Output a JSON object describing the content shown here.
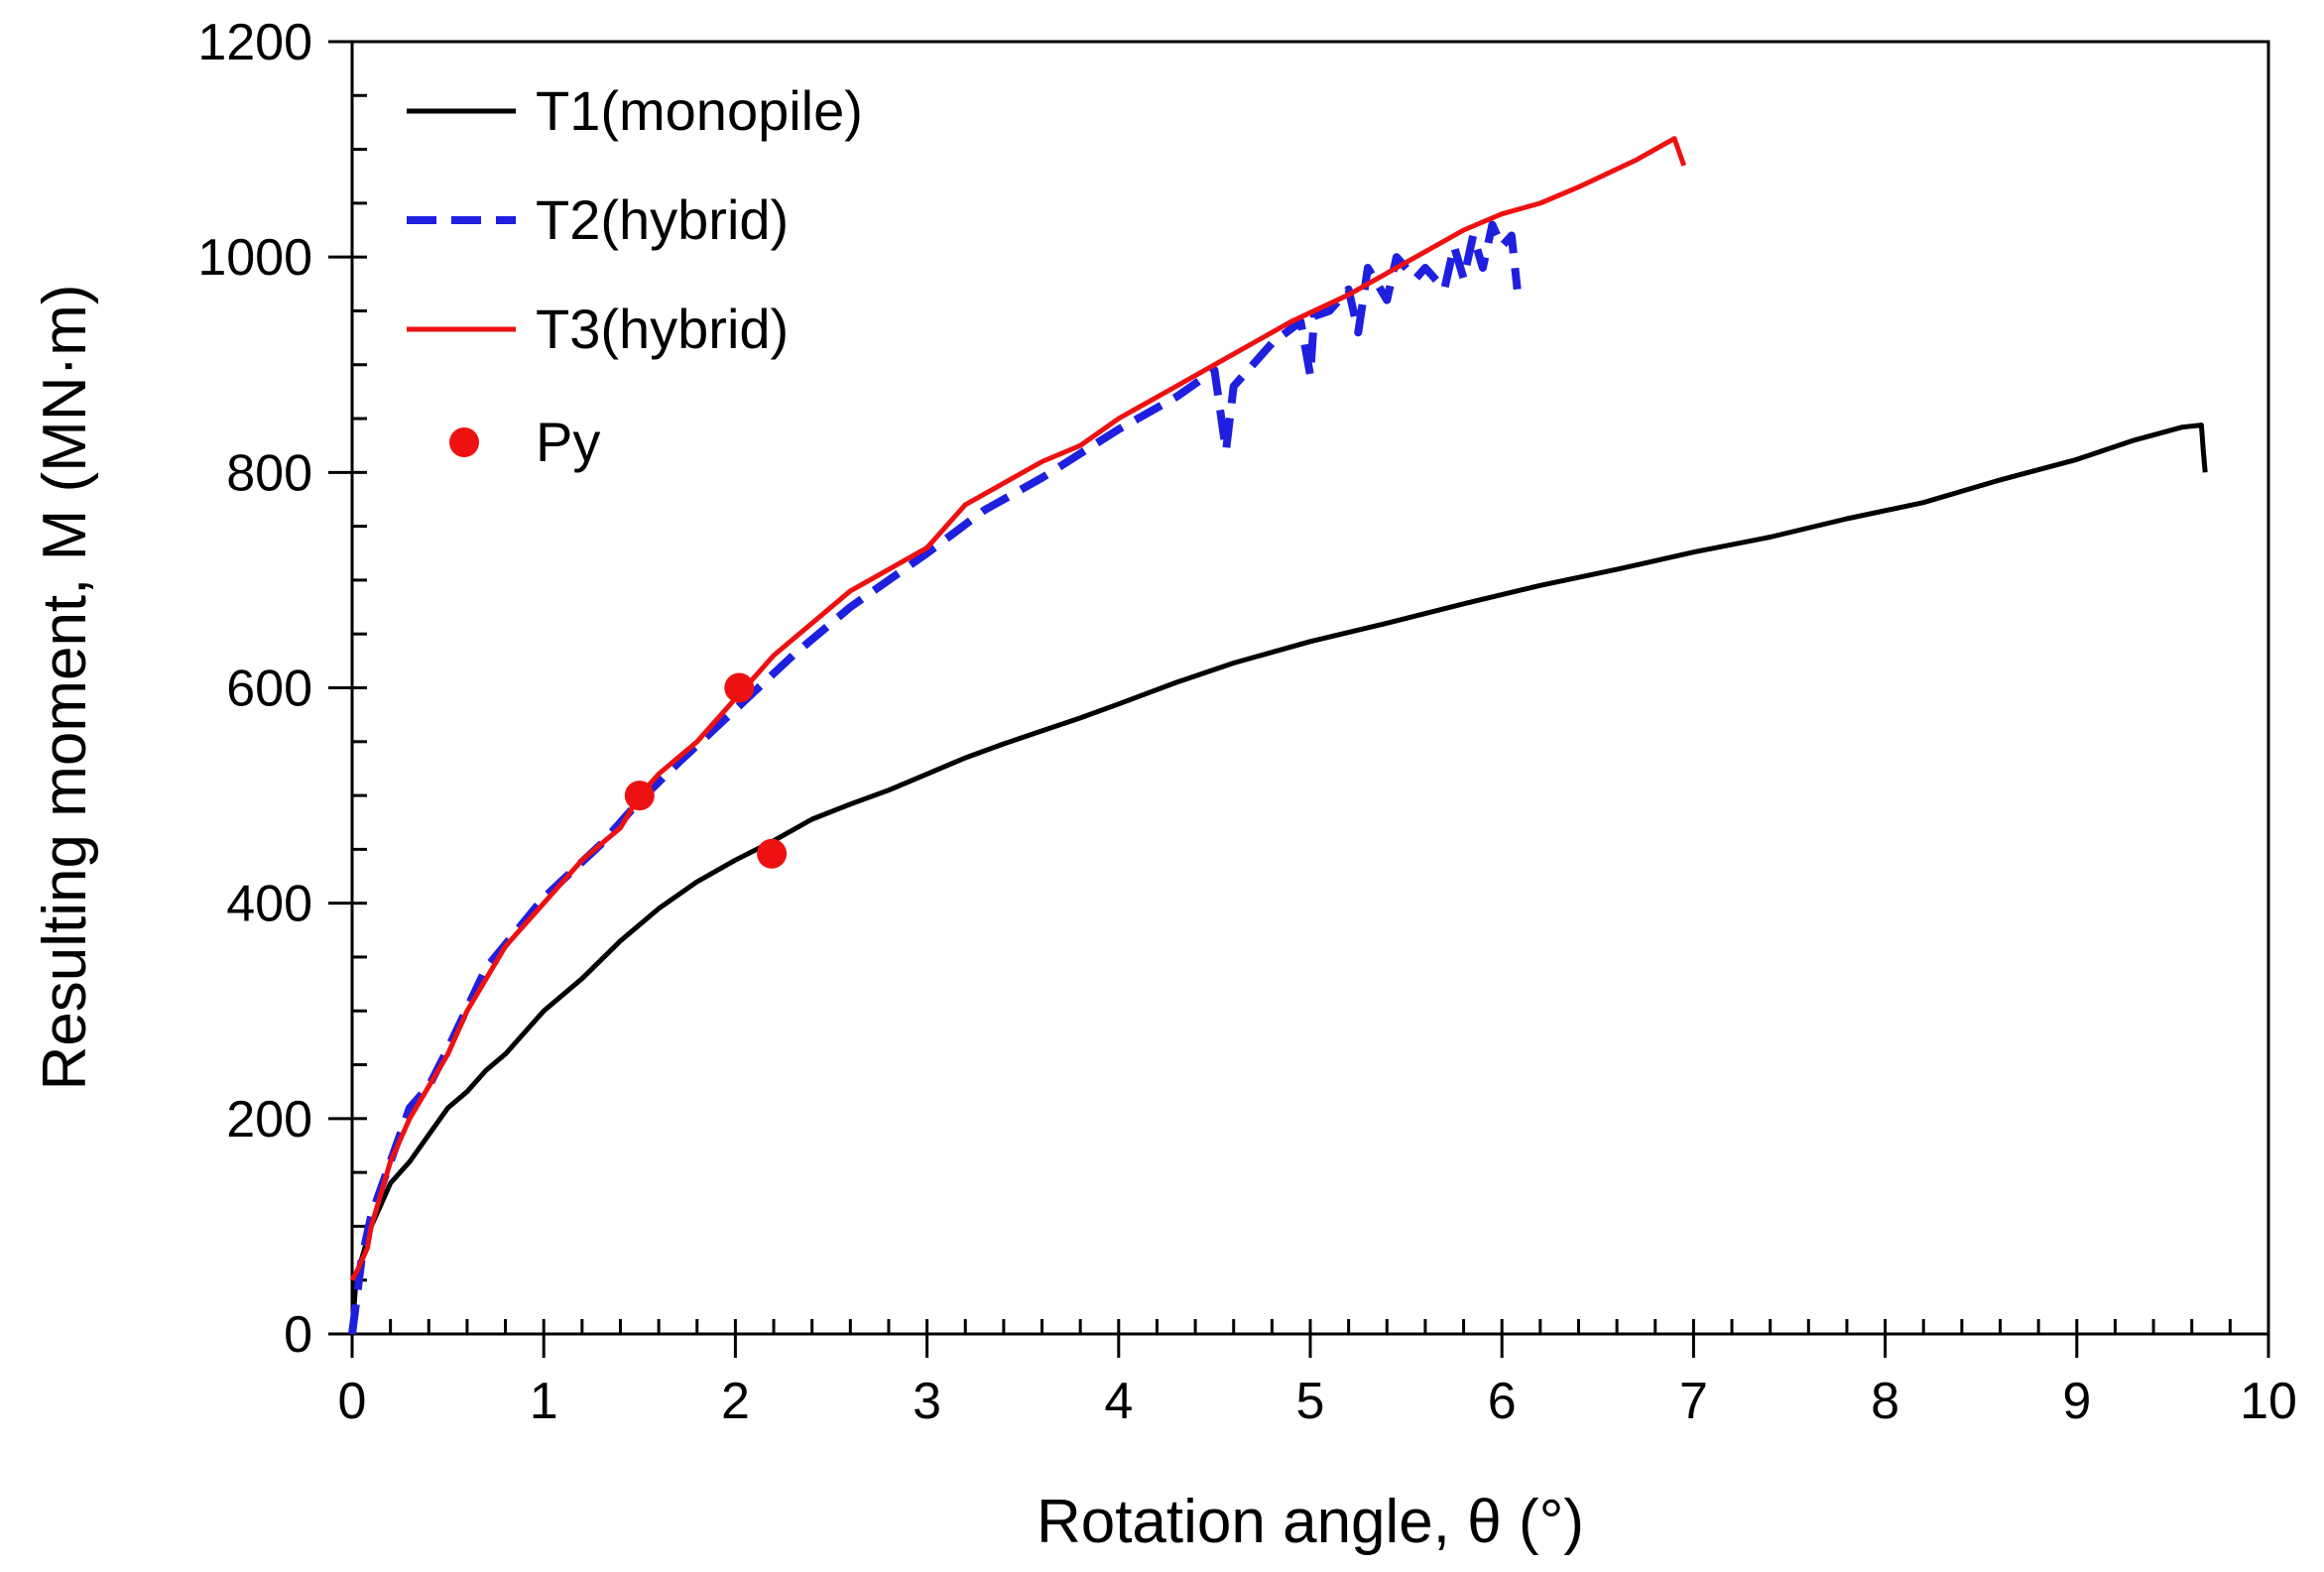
{
  "chart_data": {
    "type": "line",
    "title": "",
    "xlabel": "Rotation angle, θ (°)",
    "ylabel": "Resulting moment, M (MN·m)",
    "xlim": [
      0,
      10
    ],
    "ylim": [
      0,
      1200
    ],
    "xticks": [
      0,
      1,
      2,
      3,
      4,
      5,
      6,
      7,
      8,
      9,
      10
    ],
    "yticks": [
      0,
      200,
      400,
      600,
      800,
      1000,
      1200
    ],
    "grid": false,
    "legend_position": "top-left",
    "series": [
      {
        "name": "T1(monopile)",
        "color": "#000000",
        "style": "solid",
        "x": [
          0,
          0.02,
          0.05,
          0.1,
          0.15,
          0.2,
          0.3,
          0.4,
          0.5,
          0.6,
          0.7,
          0.8,
          0.9,
          1.0,
          1.2,
          1.4,
          1.6,
          1.8,
          2.0,
          2.2,
          2.4,
          2.6,
          2.8,
          3.0,
          3.2,
          3.4,
          3.6,
          3.8,
          4.0,
          4.3,
          4.6,
          5.0,
          5.4,
          5.8,
          6.2,
          6.6,
          7.0,
          7.4,
          7.8,
          8.2,
          8.6,
          9.0,
          9.3,
          9.55,
          9.65,
          9.66,
          9.67
        ],
        "values": [
          0,
          50,
          70,
          100,
          120,
          140,
          160,
          185,
          210,
          225,
          245,
          260,
          280,
          300,
          330,
          365,
          395,
          420,
          440,
          458,
          478,
          492,
          505,
          520,
          535,
          548,
          560,
          572,
          585,
          605,
          623,
          643,
          660,
          678,
          695,
          710,
          726,
          740,
          757,
          772,
          793,
          812,
          830,
          842,
          844,
          820,
          800
        ]
      },
      {
        "name": "T2(hybrid)",
        "color": "#1f1fe0",
        "style": "dashed",
        "x": [
          0,
          0.05,
          0.1,
          0.2,
          0.3,
          0.4,
          0.5,
          0.7,
          1.0,
          1.3,
          1.5,
          1.7,
          2.0,
          2.3,
          2.6,
          3.0,
          3.3,
          3.6,
          4.0,
          4.3,
          4.5,
          4.56,
          4.6,
          4.8,
          4.95,
          5.0,
          5.02,
          5.1,
          5.2,
          5.25,
          5.3,
          5.4,
          5.45,
          5.55,
          5.6,
          5.7,
          5.75,
          5.8,
          5.85,
          5.9,
          5.95,
          6.0,
          6.05,
          6.08
        ],
        "values": [
          0,
          70,
          110,
          160,
          210,
          230,
          265,
          340,
          405,
          455,
          495,
          530,
          580,
          630,
          675,
          725,
          765,
          795,
          840,
          870,
          895,
          820,
          880,
          920,
          940,
          890,
          945,
          950,
          970,
          930,
          990,
          960,
          1000,
          980,
          990,
          970,
          1010,
          980,
          1020,
          990,
          1030,
          1010,
          1020,
          970
        ]
      },
      {
        "name": "T3(hybrid)",
        "color": "#ee1111",
        "style": "solid",
        "x": [
          0,
          0.03,
          0.08,
          0.1,
          0.15,
          0.2,
          0.3,
          0.4,
          0.5,
          0.6,
          0.7,
          0.8,
          1.0,
          1.2,
          1.4,
          1.5,
          1.6,
          1.8,
          2.0,
          2.2,
          2.4,
          2.6,
          2.8,
          3.0,
          3.2,
          3.4,
          3.6,
          3.8,
          4.0,
          4.3,
          4.6,
          4.9,
          5.2,
          5.5,
          5.8,
          6.0,
          6.2,
          6.4,
          6.7,
          6.9,
          6.95
        ],
        "values": [
          50,
          60,
          80,
          100,
          130,
          160,
          200,
          230,
          260,
          300,
          330,
          360,
          400,
          440,
          470,
          500,
          520,
          550,
          590,
          630,
          660,
          690,
          710,
          730,
          770,
          790,
          810,
          825,
          850,
          880,
          910,
          940,
          965,
          995,
          1025,
          1040,
          1050,
          1065,
          1090,
          1110,
          1085
        ]
      }
    ],
    "markers": {
      "name": "Py",
      "color": "#ee1111",
      "points": [
        {
          "x": 2.02,
          "y": 600
        },
        {
          "x": 1.5,
          "y": 500
        },
        {
          "x": 2.19,
          "y": 446
        }
      ]
    }
  }
}
